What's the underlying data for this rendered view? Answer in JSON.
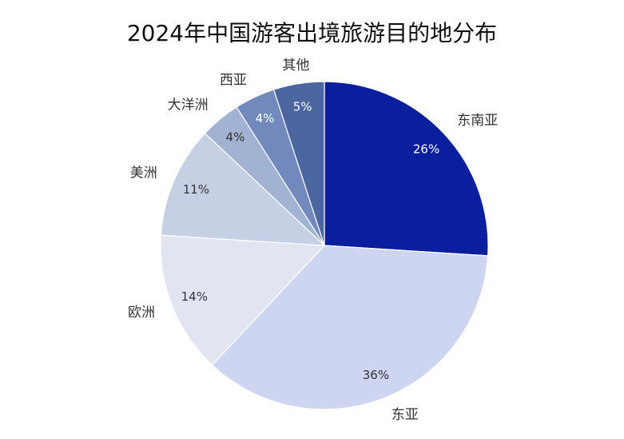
{
  "chart_data": {
    "type": "pie",
    "title": "2024年中国游客出境旅游目的地分布",
    "slices": [
      {
        "label": "东南亚",
        "value": 26,
        "pct_text": "26%",
        "color": "#0A1F9E",
        "pct_color": "#ffffff"
      },
      {
        "label": "东亚",
        "value": 36,
        "pct_text": "36%",
        "color": "#CDD5F0",
        "pct_color": "#333333"
      },
      {
        "label": "欧洲",
        "value": 14,
        "pct_text": "14%",
        "color": "#E0E5F1",
        "pct_color": "#333333"
      },
      {
        "label": "美洲",
        "value": 11,
        "pct_text": "11%",
        "color": "#C6D0E5",
        "pct_color": "#333333"
      },
      {
        "label": "大洋洲",
        "value": 4,
        "pct_text": "4%",
        "color": "#A2B2D2",
        "pct_color": "#333333"
      },
      {
        "label": "西亚",
        "value": 4,
        "pct_text": "4%",
        "color": "#7189BD",
        "pct_color": "#ffffff"
      },
      {
        "label": "其他",
        "value": 5,
        "pct_text": "5%",
        "color": "#4C66A0",
        "pct_color": "#ffffff"
      }
    ]
  }
}
